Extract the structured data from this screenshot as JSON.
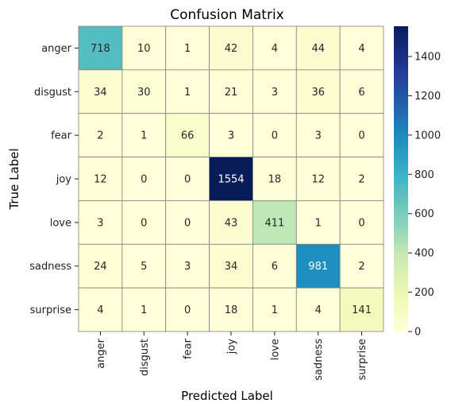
{
  "chart_data": {
    "type": "heatmap",
    "title": "Confusion Matrix",
    "xlabel": "Predicted Label",
    "ylabel": "True Label",
    "x_categories": [
      "anger",
      "disgust",
      "fear",
      "joy",
      "love",
      "sadness",
      "surprise"
    ],
    "y_categories": [
      "anger",
      "disgust",
      "fear",
      "joy",
      "love",
      "sadness",
      "surprise"
    ],
    "values": [
      [
        718,
        10,
        1,
        42,
        4,
        44,
        4
      ],
      [
        34,
        30,
        1,
        21,
        3,
        36,
        6
      ],
      [
        2,
        1,
        66,
        3,
        0,
        3,
        0
      ],
      [
        12,
        0,
        0,
        1554,
        18,
        12,
        2
      ],
      [
        3,
        0,
        0,
        43,
        411,
        1,
        0
      ],
      [
        24,
        5,
        3,
        34,
        6,
        981,
        2
      ],
      [
        4,
        1,
        0,
        18,
        1,
        4,
        141
      ]
    ],
    "colormap": "YlGnBu",
    "colorbar": {
      "range": [
        0,
        1554
      ],
      "ticks": [
        0,
        200,
        400,
        600,
        800,
        1000,
        1200,
        1400
      ]
    },
    "cell_border_color": "#808080"
  }
}
